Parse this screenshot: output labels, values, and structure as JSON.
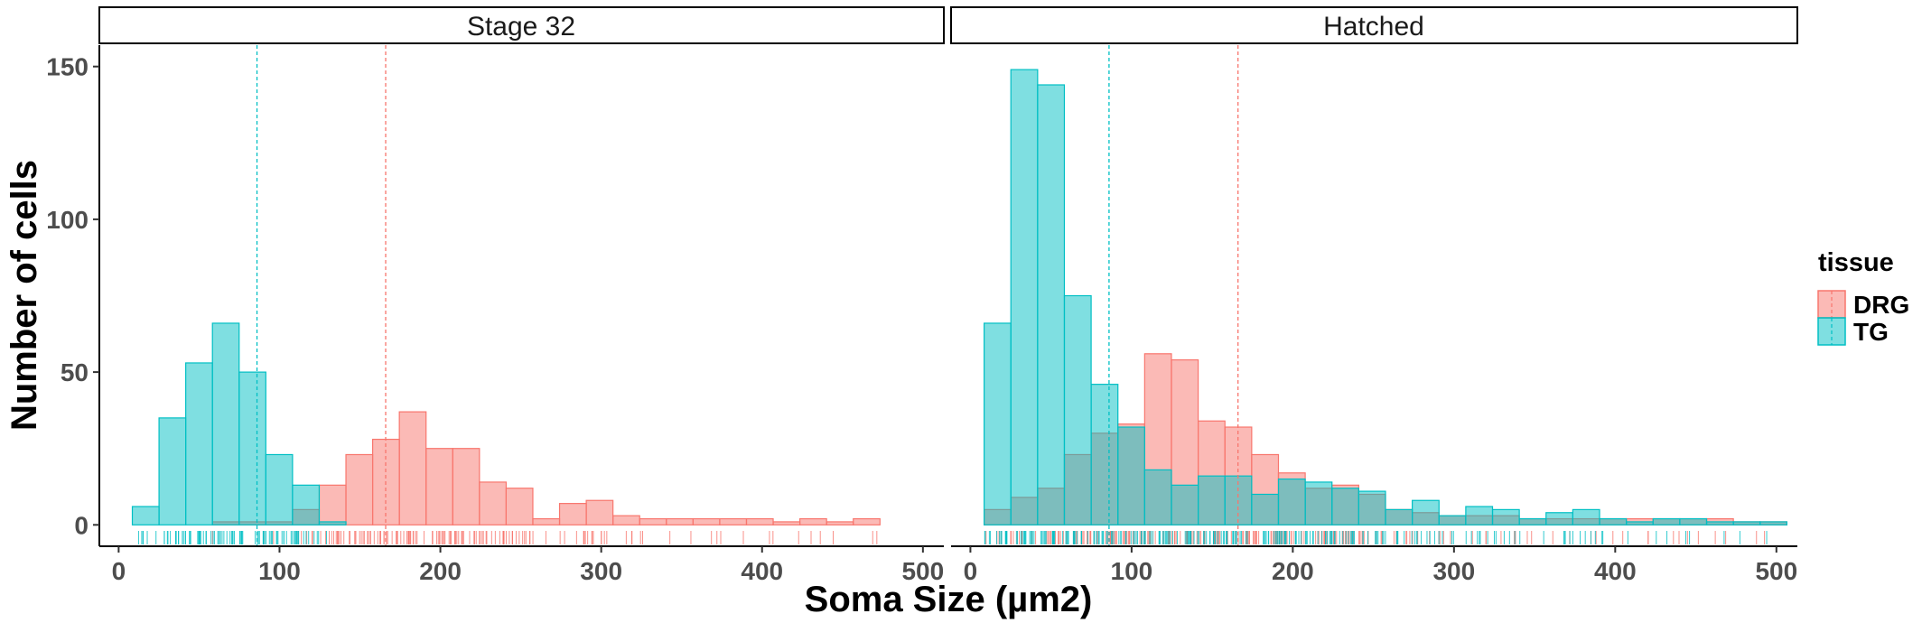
{
  "chart_data": {
    "type": "histogram",
    "xlabel": "Soma Size (µm2)",
    "ylabel": "Number of cells",
    "xlim": [
      -12,
      513
    ],
    "ylim": [
      -7,
      157
    ],
    "x_ticks": [
      0,
      100,
      200,
      300,
      400,
      500
    ],
    "y_ticks": [
      0,
      50,
      100,
      150
    ],
    "bin_width": 16.6,
    "legend": {
      "title": "tissue",
      "position": "right",
      "entries": [
        "DRG",
        "TG"
      ]
    },
    "colors": {
      "DRG": "#F8766D",
      "TG": "#00BFC4"
    },
    "panels": [
      {
        "title": "Stage 32",
        "series": [
          {
            "name": "DRG",
            "bin_starts": [
              58.3,
              74.9,
              91.5,
              108.1,
              124.7,
              141.3,
              157.9,
              174.5,
              191.1,
              207.7,
              224.3,
              240.9,
              257.5,
              274.1,
              290.7,
              307.3,
              323.9,
              340.5,
              357.1,
              373.7,
              390.3,
              406.9,
              423.5,
              440.1,
              456.7
            ],
            "values": [
              1,
              1,
              1,
              5,
              13,
              23,
              28,
              37,
              25,
              25,
              14,
              12,
              2,
              7,
              8,
              3,
              2,
              2,
              2,
              2,
              2,
              1,
              2,
              1,
              2
            ],
            "mean_line": 166
          },
          {
            "name": "TG",
            "bin_starts": [
              8.5,
              25.1,
              41.7,
              58.3,
              74.9,
              91.5,
              108.1,
              124.7,
              141.3,
              157.9,
              174.5,
              191.1,
              207.7,
              224.3,
              240.9,
              257.5,
              274.1,
              290.7,
              307.3,
              323.9,
              340.5,
              357.1,
              373.7,
              390.3,
              406.9,
              423.5,
              440.1,
              456.7,
              473.3,
              489.9
            ],
            "values": [
              6,
              35,
              53,
              66,
              50,
              23,
              13,
              1,
              0,
              0,
              0,
              0,
              0,
              0,
              0,
              0,
              0,
              0,
              0,
              0,
              0,
              0,
              0,
              0,
              0,
              0,
              0,
              0,
              0,
              0
            ],
            "mean_line": 86
          }
        ]
      },
      {
        "title": "Hatched",
        "series": [
          {
            "name": "DRG",
            "bin_starts": [
              8.5,
              25.1,
              41.7,
              58.3,
              74.9,
              91.5,
              108.1,
              124.7,
              141.3,
              157.9,
              174.5,
              191.1,
              207.7,
              224.3,
              240.9,
              257.5,
              274.1,
              290.7,
              307.3,
              323.9,
              340.5,
              357.1,
              373.7,
              390.3,
              406.9,
              423.5,
              440.1,
              456.7,
              473.3,
              489.9
            ],
            "values": [
              5,
              9,
              12,
              23,
              30,
              33,
              56,
              54,
              34,
              32,
              23,
              17,
              12,
              13,
              10,
              5,
              4,
              3,
              3,
              3,
              2,
              2,
              2,
              2,
              2,
              2,
              2,
              2,
              1,
              1
            ],
            "mean_line": 166
          },
          {
            "name": "TG",
            "bin_starts": [
              8.5,
              25.1,
              41.7,
              58.3,
              74.9,
              91.5,
              108.1,
              124.7,
              141.3,
              157.9,
              174.5,
              191.1,
              207.7,
              224.3,
              240.9,
              257.5,
              274.1,
              290.7,
              307.3,
              323.9,
              340.5,
              357.1,
              373.7,
              390.3,
              406.9,
              423.5,
              440.1,
              456.7,
              473.3,
              489.9
            ],
            "values": [
              66,
              149,
              144,
              75,
              46,
              32,
              18,
              13,
              16,
              16,
              10,
              15,
              14,
              12,
              11,
              5,
              8,
              3,
              6,
              5,
              2,
              4,
              5,
              2,
              1,
              2,
              2,
              1,
              1,
              1
            ],
            "mean_line": 86
          }
        ]
      }
    ],
    "rug": true
  }
}
